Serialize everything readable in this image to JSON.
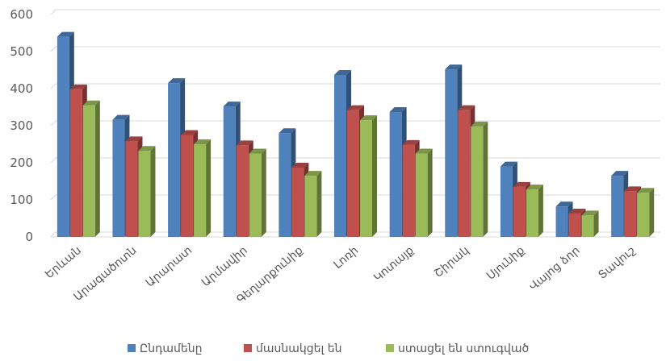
{
  "chart_data": {
    "type": "bar",
    "title": "",
    "xlabel": "",
    "ylabel": "",
    "ylim": [
      0,
      600
    ],
    "yticks": [
      0,
      100,
      200,
      300,
      400,
      500,
      600
    ],
    "grid": true,
    "legend_position": "bottom",
    "categories": [
      "Երևան",
      "Արագածոտն",
      "Արարատ",
      "Արմավիր",
      "Գեղարքունիք",
      "Լոռի",
      "Կոտայք",
      "Շիրակ",
      "Սյունիք",
      "Վայոց ձոր",
      "Տավուշ"
    ],
    "series": [
      {
        "name": "Ընդամենը",
        "color": "#4F81BD",
        "values": [
          540,
          316,
          415,
          352,
          280,
          437,
          337,
          452,
          190,
          82,
          165
        ]
      },
      {
        "name": "մասնակցել են",
        "color": "#C0504D",
        "values": [
          398,
          258,
          275,
          247,
          187,
          342,
          248,
          342,
          135,
          63,
          123
        ]
      },
      {
        "name": "ստացել են ստուգված",
        "color": "#9BBB59",
        "values": [
          355,
          232,
          250,
          225,
          165,
          315,
          225,
          298,
          128,
          58,
          119
        ]
      }
    ]
  }
}
